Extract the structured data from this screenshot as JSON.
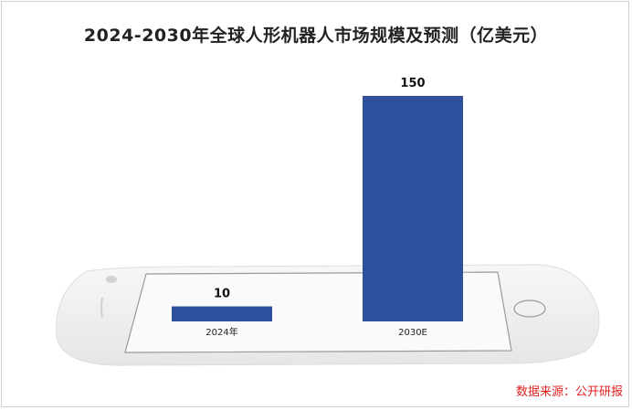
{
  "title": "2024-2030年全球人形机器人市场规模及预测（亿美元）",
  "source": "数据来源：公开研报",
  "chart_data": {
    "type": "bar",
    "title": "2024-2030年全球人形机器人市场规模及预测（亿美元）",
    "categories": [
      "2024年",
      "2030E"
    ],
    "values": [
      10,
      150
    ],
    "data_labels": [
      "10",
      "150"
    ],
    "ylim": [
      0,
      150
    ],
    "bar_color": "#2e4f9c",
    "grid": false,
    "legend": "none"
  }
}
